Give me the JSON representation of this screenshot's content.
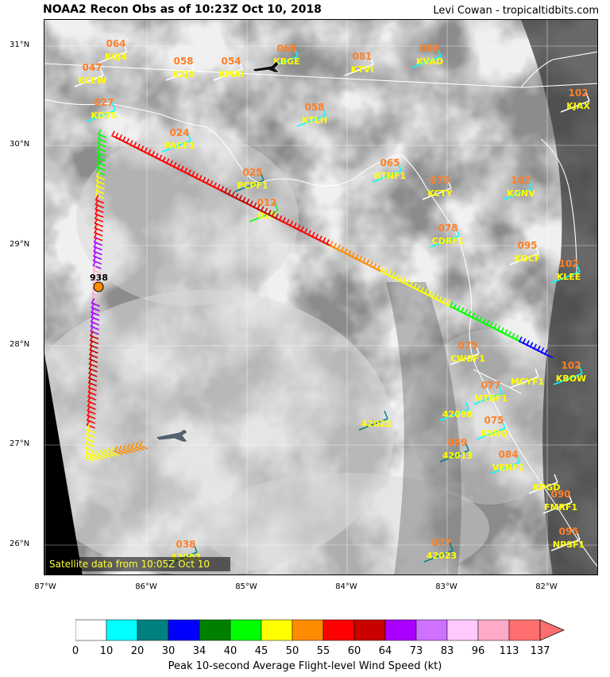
{
  "header": {
    "title": "NOAA2 Recon Obs as of 10:23Z Oct 10, 2018",
    "credit": "Levi Cowan - tropicaltidbits.com"
  },
  "map": {
    "lat_ticks": [
      "31°N",
      "30°N",
      "29°N",
      "28°N",
      "27°N",
      "26°N"
    ],
    "lon_ticks": [
      "87°W",
      "86°W",
      "85°W",
      "84°W",
      "83°W",
      "82°W"
    ],
    "satellite_note": "Satellite data from 10:05Z Oct 10",
    "center_pressure": "938",
    "stations": [
      {
        "id": "K0J4",
        "value": "064"
      },
      {
        "id": "KCEW",
        "value": "047"
      },
      {
        "id": "K2J0",
        "value": "058"
      },
      {
        "id": "KMAI",
        "value": "054"
      },
      {
        "id": "KBGE",
        "value": "068"
      },
      {
        "id": "KTVI",
        "value": "081"
      },
      {
        "id": "KVAD",
        "value": "088"
      },
      {
        "id": "KJAX",
        "value": "102"
      },
      {
        "id": "KDTS",
        "value": "027"
      },
      {
        "id": "KTLH",
        "value": "058"
      },
      {
        "id": "PACF1",
        "value": "024"
      },
      {
        "id": "KTNF1",
        "value": "065"
      },
      {
        "id": "PCPF1",
        "value": "025"
      },
      {
        "id": "KCTY",
        "value": "075"
      },
      {
        "id": "KGNV",
        "value": "102"
      },
      {
        "id": "012",
        "value": "012"
      },
      {
        "id": "CDRF1",
        "value": "078"
      },
      {
        "id": "KOCF",
        "value": "095"
      },
      {
        "id": "KLEE",
        "value": "102"
      },
      {
        "id": "CWBF1",
        "value": "075"
      },
      {
        "id": "MCYF1",
        "value": ""
      },
      {
        "id": "KBOW",
        "value": "102"
      },
      {
        "id": "MTBF1",
        "value": "077"
      },
      {
        "id": "42022",
        "value": ""
      },
      {
        "id": "42098",
        "value": ""
      },
      {
        "id": "KSRQ",
        "value": "075"
      },
      {
        "id": "42013",
        "value": "069"
      },
      {
        "id": "VENF1",
        "value": "084"
      },
      {
        "id": "KPGD",
        "value": ""
      },
      {
        "id": "FMRF1",
        "value": "090"
      },
      {
        "id": "42003",
        "value": "038"
      },
      {
        "id": "42023",
        "value": "077"
      },
      {
        "id": "NPSF1",
        "value": "095"
      }
    ]
  },
  "legend": {
    "ticks": [
      "0",
      "10",
      "20",
      "30",
      "34",
      "40",
      "45",
      "50",
      "55",
      "60",
      "64",
      "73",
      "83",
      "96",
      "113",
      "137"
    ],
    "colors": [
      "#ffffff",
      "#00ffff",
      "#008080",
      "#0000ff",
      "#008000",
      "#00ff00",
      "#ffff00",
      "#ff8c00",
      "#ff0000",
      "#c80000",
      "#aa00ff",
      "#d070ff",
      "#ffc8ff",
      "#ffaac8",
      "#ff6e6e"
    ],
    "label": "Peak 10-second Average Flight-level Wind Speed (kt)"
  }
}
